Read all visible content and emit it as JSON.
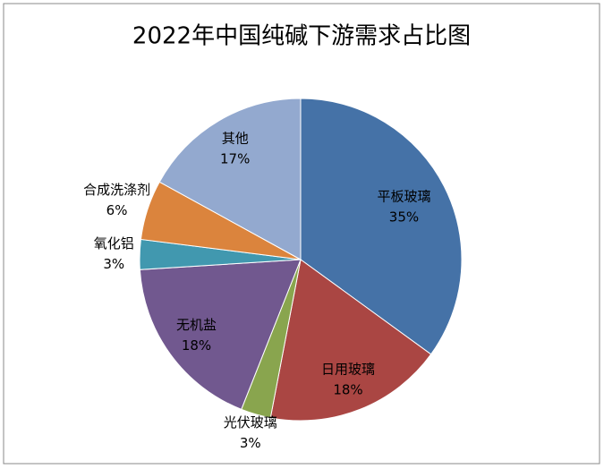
{
  "chart_data": {
    "type": "pie",
    "title": "2022年中国纯碱下游需求占比图",
    "categories": [
      "平板玻璃",
      "日用玻璃",
      "光伏玻璃",
      "无机盐",
      "氧化铝",
      "合成洗涤剂",
      "其他"
    ],
    "values": [
      35,
      18,
      3,
      18,
      3,
      6,
      17
    ],
    "value_labels": [
      "35%",
      "18%",
      "3%",
      "18%",
      "3%",
      "6%",
      "17%"
    ],
    "colors": [
      "#4572a7",
      "#aa4643",
      "#89a54e",
      "#71588f",
      "#4198af",
      "#db843d",
      "#93a9cf"
    ]
  }
}
